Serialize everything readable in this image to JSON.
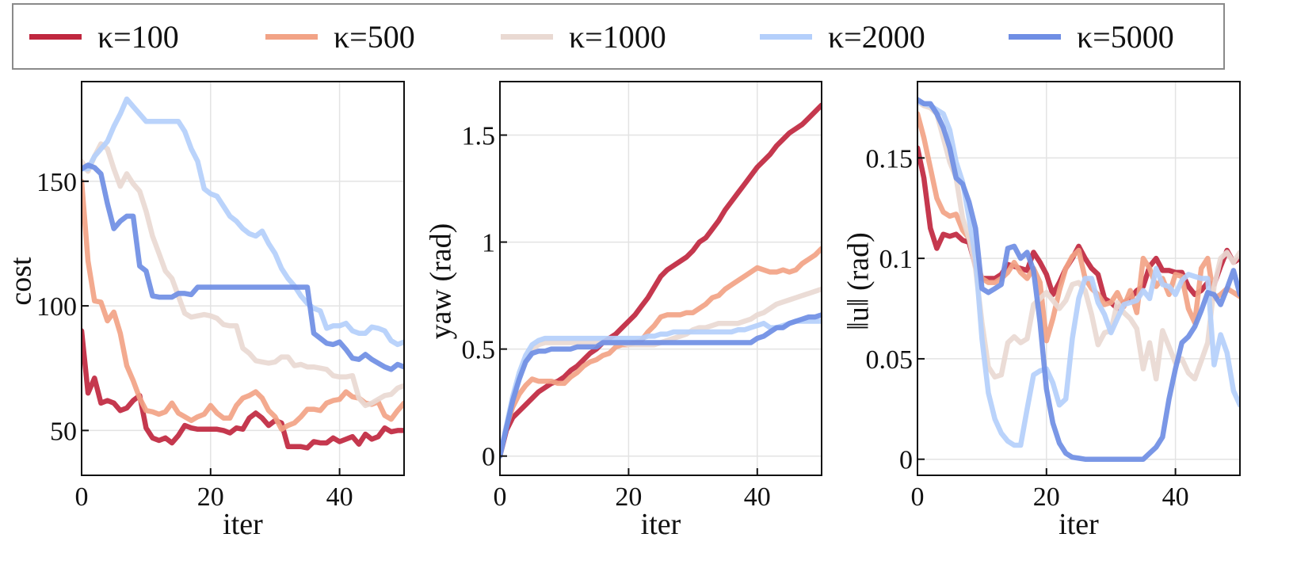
{
  "legend": {
    "items": [
      {
        "label": "κ=100",
        "color": "#c0273f"
      },
      {
        "label": "κ=500",
        "color": "#f2a386"
      },
      {
        "label": "κ=1000",
        "color": "#e9d9d2"
      },
      {
        "label": "κ=2000",
        "color": "#b4cffb"
      },
      {
        "label": "κ=5000",
        "color": "#6f8ee4"
      }
    ]
  },
  "chart_data": [
    {
      "type": "line",
      "title": "",
      "xlabel": "iter",
      "ylabel": "cost",
      "xlim": [
        0,
        50
      ],
      "ylim": [
        32,
        190
      ],
      "xticks": [
        0,
        20,
        40
      ],
      "yticks": [
        50,
        100,
        150
      ],
      "xtick_labels": [
        "0",
        "20",
        "40"
      ],
      "ytick_labels": [
        "50",
        "100",
        "150"
      ],
      "grid": true,
      "x": [
        0,
        1,
        2,
        3,
        4,
        5,
        6,
        7,
        8,
        9,
        10,
        11,
        12,
        13,
        14,
        15,
        16,
        17,
        18,
        19,
        20,
        21,
        22,
        23,
        24,
        25,
        26,
        27,
        28,
        29,
        30,
        31,
        32,
        33,
        34,
        35,
        36,
        37,
        38,
        39,
        40,
        41,
        42,
        43,
        44,
        45,
        46,
        47,
        48,
        49,
        50
      ],
      "series": [
        {
          "name": "κ=100",
          "values": [
            90,
            65,
            71,
            61,
            62,
            61,
            58,
            59,
            62,
            64,
            51,
            47,
            46,
            47,
            45,
            48,
            52,
            51,
            50.5,
            50.5,
            50.5,
            50.5,
            50,
            49,
            51,
            50.5,
            55,
            57,
            55,
            52,
            54,
            53,
            43.5,
            43.5,
            43.5,
            43,
            45.5,
            45,
            45,
            47,
            45.5,
            46.5,
            47.5,
            44.5,
            48.5,
            46.5,
            47.5,
            51,
            49.5,
            50,
            50
          ]
        },
        {
          "name": "κ=500",
          "values": [
            150,
            118,
            102,
            101.5,
            94,
            97.5,
            89,
            76,
            70,
            63,
            58,
            57.5,
            56.5,
            57.5,
            61,
            57,
            55.5,
            54,
            55.5,
            56.5,
            60,
            57,
            55,
            55,
            60,
            63,
            64,
            65.5,
            63,
            58,
            55.5,
            50.5,
            52,
            53,
            55.5,
            58.5,
            58.5,
            58,
            61,
            62,
            62.5,
            65.5,
            63.5,
            63,
            61,
            60.5,
            61.5,
            56,
            54.5,
            58,
            61
          ]
        },
        {
          "name": "κ=1000",
          "values": [
            158,
            154,
            160,
            165,
            163,
            155,
            148,
            153,
            149,
            146,
            138,
            128,
            121,
            114,
            111,
            104,
            97,
            95.5,
            96,
            96.5,
            96,
            95,
            92.5,
            92,
            92,
            83,
            81,
            78,
            77.5,
            77,
            77.5,
            79.5,
            79.5,
            76,
            76.5,
            75.5,
            75.5,
            75,
            74.5,
            72,
            71.5,
            71.5,
            72,
            63,
            60,
            61,
            62.5,
            64,
            64.5,
            67,
            68
          ]
        },
        {
          "name": "κ=2000",
          "values": [
            155,
            155,
            160,
            163,
            166,
            172,
            177,
            183,
            180,
            177,
            174,
            174,
            174,
            174,
            174,
            174,
            170,
            163,
            158,
            147,
            145,
            144,
            140,
            136,
            134,
            131,
            129,
            128,
            130,
            125,
            121,
            115,
            111,
            108,
            104,
            101,
            99,
            98,
            91,
            92,
            92,
            93,
            90,
            89,
            89,
            91.5,
            91,
            90,
            86,
            84.5,
            85.5
          ]
        },
        {
          "name": "κ=5000",
          "values": [
            155,
            156.5,
            155.5,
            153,
            141,
            131,
            134,
            136,
            136,
            116,
            114,
            104,
            103.5,
            103.5,
            103.5,
            105,
            105,
            104.5,
            107.5,
            107.5,
            107.5,
            107.5,
            107.5,
            107.5,
            107.5,
            107.5,
            107.5,
            107.5,
            107.5,
            107.5,
            107.5,
            107.5,
            107.5,
            107.5,
            107.5,
            107.5,
            89,
            87,
            85,
            84.5,
            85.5,
            82.5,
            79,
            78.5,
            80.5,
            78.5,
            77,
            75.5,
            74.5,
            76.5,
            75.5
          ]
        }
      ]
    },
    {
      "type": "line",
      "title": "",
      "xlabel": "iter",
      "ylabel": "yaw (rad)",
      "xlim": [
        0,
        50
      ],
      "ylim": [
        -0.09,
        1.75
      ],
      "xticks": [
        0,
        20,
        40
      ],
      "yticks": [
        0,
        0.5,
        1,
        1.5
      ],
      "xtick_labels": [
        "0",
        "20",
        "40"
      ],
      "ytick_labels": [
        "0",
        "0.5",
        "1",
        "1.5"
      ],
      "grid": true,
      "x": [
        0,
        1,
        2,
        3,
        4,
        5,
        6,
        7,
        8,
        9,
        10,
        11,
        12,
        13,
        14,
        15,
        16,
        17,
        18,
        19,
        20,
        21,
        22,
        23,
        24,
        25,
        26,
        27,
        28,
        29,
        30,
        31,
        32,
        33,
        34,
        35,
        36,
        37,
        38,
        39,
        40,
        41,
        42,
        43,
        44,
        45,
        46,
        47,
        48,
        49,
        50
      ],
      "series": [
        {
          "name": "κ=100",
          "values": [
            0,
            0.12,
            0.18,
            0.21,
            0.24,
            0.27,
            0.3,
            0.32,
            0.34,
            0.35,
            0.37,
            0.4,
            0.42,
            0.45,
            0.48,
            0.5,
            0.53,
            0.55,
            0.57,
            0.6,
            0.63,
            0.66,
            0.7,
            0.74,
            0.79,
            0.84,
            0.87,
            0.89,
            0.91,
            0.93,
            0.96,
            1.0,
            1.02,
            1.06,
            1.1,
            1.15,
            1.19,
            1.23,
            1.27,
            1.31,
            1.35,
            1.38,
            1.41,
            1.45,
            1.48,
            1.51,
            1.53,
            1.55,
            1.58,
            1.61,
            1.64
          ]
        },
        {
          "name": "κ=500",
          "values": [
            0,
            0.14,
            0.23,
            0.29,
            0.33,
            0.36,
            0.35,
            0.35,
            0.35,
            0.34,
            0.34,
            0.37,
            0.39,
            0.42,
            0.44,
            0.45,
            0.47,
            0.48,
            0.51,
            0.52,
            0.52,
            0.53,
            0.54,
            0.58,
            0.61,
            0.65,
            0.66,
            0.66,
            0.66,
            0.67,
            0.67,
            0.69,
            0.71,
            0.74,
            0.75,
            0.78,
            0.8,
            0.82,
            0.84,
            0.86,
            0.88,
            0.87,
            0.86,
            0.86,
            0.87,
            0.86,
            0.87,
            0.9,
            0.92,
            0.94,
            0.97
          ]
        },
        {
          "name": "κ=1000",
          "values": [
            0,
            0.14,
            0.27,
            0.37,
            0.45,
            0.5,
            0.52,
            0.53,
            0.53,
            0.53,
            0.53,
            0.53,
            0.53,
            0.53,
            0.53,
            0.53,
            0.53,
            0.53,
            0.53,
            0.53,
            0.52,
            0.52,
            0.52,
            0.52,
            0.52,
            0.53,
            0.54,
            0.55,
            0.56,
            0.57,
            0.59,
            0.6,
            0.6,
            0.61,
            0.62,
            0.62,
            0.62,
            0.62,
            0.63,
            0.64,
            0.66,
            0.67,
            0.69,
            0.71,
            0.72,
            0.73,
            0.74,
            0.75,
            0.76,
            0.77,
            0.78
          ]
        },
        {
          "name": "κ=2000",
          "values": [
            0,
            0.14,
            0.28,
            0.39,
            0.47,
            0.52,
            0.54,
            0.55,
            0.55,
            0.55,
            0.55,
            0.55,
            0.55,
            0.55,
            0.55,
            0.55,
            0.55,
            0.55,
            0.55,
            0.55,
            0.55,
            0.55,
            0.55,
            0.56,
            0.56,
            0.57,
            0.57,
            0.58,
            0.58,
            0.58,
            0.58,
            0.58,
            0.58,
            0.58,
            0.58,
            0.58,
            0.58,
            0.59,
            0.59,
            0.6,
            0.61,
            0.62,
            0.6,
            0.6,
            0.61,
            0.62,
            0.63,
            0.63,
            0.63,
            0.63,
            0.63
          ]
        },
        {
          "name": "κ=5000",
          "values": [
            0,
            0.13,
            0.26,
            0.36,
            0.44,
            0.48,
            0.49,
            0.49,
            0.5,
            0.5,
            0.5,
            0.5,
            0.51,
            0.51,
            0.51,
            0.51,
            0.53,
            0.53,
            0.53,
            0.53,
            0.53,
            0.53,
            0.53,
            0.53,
            0.53,
            0.53,
            0.53,
            0.53,
            0.53,
            0.53,
            0.53,
            0.53,
            0.53,
            0.53,
            0.53,
            0.53,
            0.53,
            0.53,
            0.53,
            0.53,
            0.55,
            0.56,
            0.58,
            0.6,
            0.6,
            0.62,
            0.63,
            0.64,
            0.65,
            0.65,
            0.66
          ]
        }
      ]
    },
    {
      "type": "line",
      "title": "",
      "xlabel": "iter",
      "ylabel": "‖u‖ (rad)",
      "xlim": [
        0,
        50
      ],
      "ylim": [
        -0.008,
        0.188
      ],
      "xticks": [
        0,
        20,
        40
      ],
      "yticks": [
        0,
        0.05,
        0.1,
        0.15
      ],
      "xtick_labels": [
        "0",
        "20",
        "40"
      ],
      "ytick_labels": [
        "0",
        "0.05",
        "0.1",
        "0.15"
      ],
      "grid": true,
      "x": [
        0,
        1,
        2,
        3,
        4,
        5,
        6,
        7,
        8,
        9,
        10,
        11,
        12,
        13,
        14,
        15,
        16,
        17,
        18,
        19,
        20,
        21,
        22,
        23,
        24,
        25,
        26,
        27,
        28,
        29,
        30,
        31,
        32,
        33,
        34,
        35,
        36,
        37,
        38,
        39,
        40,
        41,
        42,
        43,
        44,
        45,
        46,
        47,
        48,
        49,
        50
      ],
      "series": [
        {
          "name": "κ=100",
          "values": [
            0.155,
            0.14,
            0.115,
            0.105,
            0.112,
            0.111,
            0.112,
            0.109,
            0.108,
            0.096,
            0.09,
            0.09,
            0.09,
            0.092,
            0.097,
            0.096,
            0.095,
            0.094,
            0.103,
            0.098,
            0.092,
            0.082,
            0.088,
            0.095,
            0.1,
            0.106,
            0.1,
            0.095,
            0.092,
            0.08,
            0.078,
            0.075,
            0.078,
            0.08,
            0.084,
            0.086,
            0.096,
            0.1,
            0.094,
            0.094,
            0.093,
            0.093,
            0.086,
            0.082,
            0.084,
            0.088,
            0.087,
            0.096,
            0.104,
            0.098,
            0.1
          ]
        },
        {
          "name": "κ=500",
          "values": [
            0.172,
            0.16,
            0.145,
            0.13,
            0.123,
            0.121,
            0.122,
            0.114,
            0.11,
            0.1,
            0.09,
            0.088,
            0.088,
            0.09,
            0.093,
            0.098,
            0.093,
            0.09,
            0.095,
            0.088,
            0.059,
            0.07,
            0.084,
            0.095,
            0.101,
            0.104,
            0.09,
            0.085,
            0.082,
            0.077,
            0.078,
            0.083,
            0.076,
            0.084,
            0.073,
            0.1,
            0.095,
            0.086,
            0.09,
            0.082,
            0.092,
            0.091,
            0.075,
            0.068,
            0.095,
            0.1,
            0.08,
            0.082,
            0.085,
            0.083,
            0.081
          ]
        },
        {
          "name": "κ=1000",
          "values": [
            0.178,
            0.176,
            0.175,
            0.172,
            0.16,
            0.148,
            0.14,
            0.12,
            0.11,
            0.095,
            0.068,
            0.046,
            0.041,
            0.042,
            0.058,
            0.061,
            0.058,
            0.06,
            0.077,
            0.08,
            0.083,
            0.079,
            0.075,
            0.079,
            0.087,
            0.088,
            0.084,
            0.072,
            0.057,
            0.063,
            0.064,
            0.078,
            0.073,
            0.07,
            0.065,
            0.045,
            0.058,
            0.04,
            0.064,
            0.056,
            0.048,
            0.05,
            0.043,
            0.04,
            0.049,
            0.058,
            0.086,
            0.1,
            0.103,
            0.098,
            0.103
          ]
        },
        {
          "name": "κ=2000",
          "values": [
            0.178,
            0.177,
            0.176,
            0.174,
            0.172,
            0.164,
            0.148,
            0.138,
            0.12,
            0.1,
            0.06,
            0.033,
            0.02,
            0.013,
            0.009,
            0.007,
            0.007,
            0.025,
            0.042,
            0.044,
            0.045,
            0.038,
            0.027,
            0.03,
            0.06,
            0.08,
            0.09,
            0.09,
            0.078,
            0.072,
            0.063,
            0.07,
            0.077,
            0.078,
            0.079,
            0.084,
            0.08,
            0.095,
            0.087,
            0.086,
            0.082,
            0.089,
            0.092,
            0.091,
            0.09,
            0.09,
            0.047,
            0.062,
            0.053,
            0.034,
            0.027
          ]
        },
        {
          "name": "κ=5000",
          "values": [
            0.179,
            0.177,
            0.177,
            0.172,
            0.165,
            0.155,
            0.14,
            0.137,
            0.128,
            0.115,
            0.085,
            0.083,
            0.085,
            0.087,
            0.105,
            0.106,
            0.1,
            0.103,
            0.094,
            0.068,
            0.035,
            0.018,
            0.008,
            0.003,
            0.001,
            0.0005,
            0,
            0,
            0,
            0,
            0,
            0,
            0,
            0,
            0,
            0,
            0.003,
            0.006,
            0.011,
            0.03,
            0.045,
            0.058,
            0.061,
            0.066,
            0.074,
            0.083,
            0.082,
            0.077,
            0.085,
            0.094,
            0.082
          ]
        }
      ]
    }
  ]
}
